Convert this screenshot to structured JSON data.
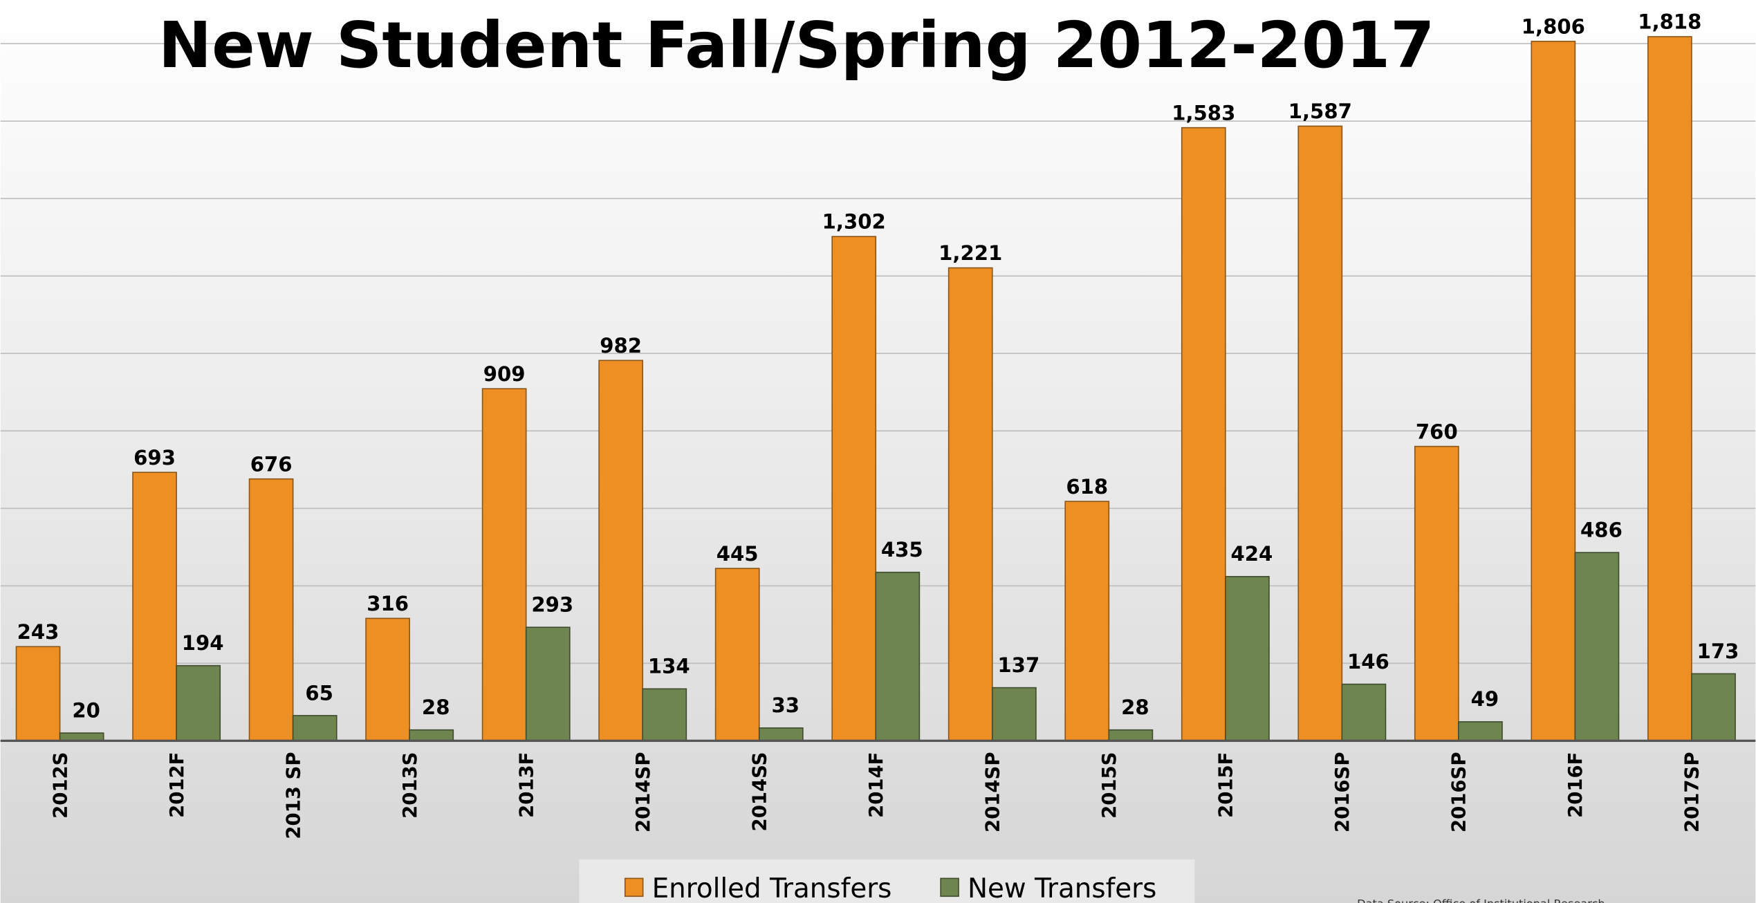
{
  "chart_data": {
    "type": "bar",
    "title": "New Student Fall/Spring 2012-2017",
    "categories": [
      "2012S",
      "2012F",
      "2013 SP",
      "2013S",
      "2013F",
      "2014SP",
      "2014SS",
      "2014F",
      "2014SP",
      "2015S",
      "2015F",
      "2016SP",
      "2016SP",
      "2016F",
      "2017SP"
    ],
    "series": [
      {
        "name": "Enrolled Transfers",
        "color": "#ee8f24",
        "values": [
          243,
          693,
          676,
          316,
          909,
          982,
          445,
          1302,
          1221,
          618,
          1583,
          1587,
          760,
          1806,
          1818
        ],
        "value_labels": [
          "243",
          "693",
          "676",
          "316",
          "909",
          "982",
          "445",
          "1,302",
          "1,221",
          "618",
          "1,583",
          "1,587",
          "760",
          "1,806",
          "1,818"
        ]
      },
      {
        "name": "New Transfers",
        "color": "#6f8550",
        "values": [
          20,
          194,
          65,
          28,
          293,
          134,
          33,
          435,
          137,
          28,
          424,
          146,
          49,
          486,
          173
        ],
        "value_labels": [
          "20",
          "194",
          "65",
          "28",
          "293",
          "134",
          "33",
          "435",
          "137",
          "28",
          "424",
          "146",
          "49",
          "486",
          "173"
        ]
      }
    ],
    "ylim": [
      0,
      1800
    ],
    "yticks": [
      0,
      200,
      400,
      600,
      800,
      1000,
      1200,
      1400,
      1600,
      1800
    ],
    "grid": true,
    "legend": "bottom",
    "source": "Data Source: Office of Institutional Research"
  }
}
